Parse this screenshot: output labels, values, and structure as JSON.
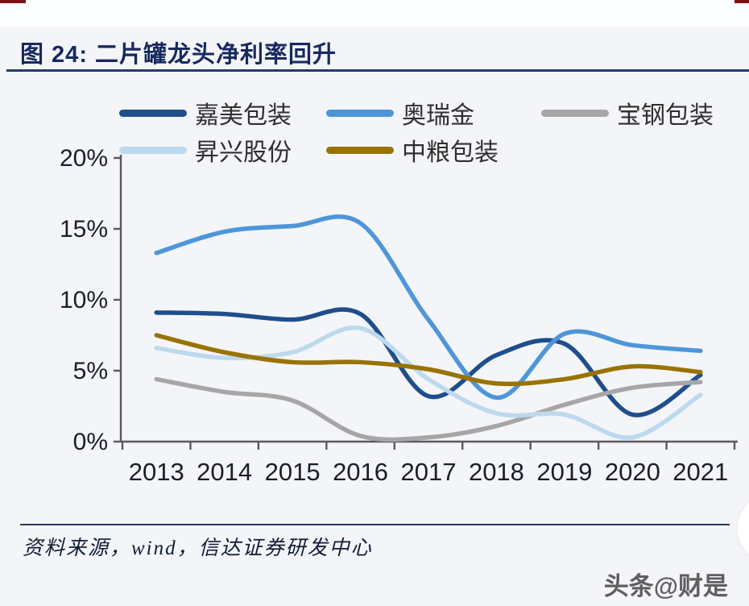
{
  "page": {
    "title": "图 24:  二片罐龙头净利率回升",
    "source": "资料来源，wind，信达证券研发中心",
    "watermark": "头条@财是"
  },
  "colors": {
    "title_navy": "#17295E",
    "axis_line": "#595959",
    "axis_text": "#1D1D28",
    "page_bg": "#F3F5F9",
    "top_strip": "#FCFDFE",
    "corner_dash_red": "#7E1416",
    "divider_navy": "#24395E"
  },
  "chart_data": {
    "type": "line",
    "title": "二片罐龙头净利率回升",
    "categories": [
      "2013",
      "2014",
      "2015",
      "2016",
      "2017",
      "2018",
      "2019",
      "2020",
      "2021"
    ],
    "series": [
      {
        "name": "嘉美包装",
        "color": "#1F4E8C",
        "values": [
          9.1,
          9.0,
          8.6,
          9.0,
          3.2,
          6.1,
          6.9,
          1.9,
          4.7
        ]
      },
      {
        "name": "奥瑞金",
        "color": "#4E96D9",
        "values": [
          13.3,
          14.8,
          15.2,
          15.4,
          8.6,
          3.1,
          7.6,
          6.8,
          6.4
        ]
      },
      {
        "name": "宝钢包装",
        "color": "#A6A6A6",
        "values": [
          4.4,
          3.5,
          2.9,
          0.4,
          0.3,
          1.1,
          2.6,
          3.8,
          4.2
        ]
      },
      {
        "name": "昇兴股份",
        "color": "#BDD9EE",
        "values": [
          6.6,
          5.9,
          6.3,
          8.0,
          4.4,
          2.0,
          1.9,
          0.3,
          3.3
        ]
      },
      {
        "name": "中粮包装",
        "color": "#997300",
        "values": [
          7.5,
          6.3,
          5.6,
          5.6,
          5.1,
          4.1,
          4.4,
          5.3,
          4.9
        ]
      }
    ],
    "xlabel": "",
    "ylabel": "",
    "ylim": [
      0,
      20
    ],
    "y_ticks": [
      "0%",
      "5%",
      "10%",
      "15%",
      "20%"
    ],
    "y_tick_values": [
      0,
      5,
      10,
      15,
      20
    ],
    "grid": false,
    "legend_position": "top",
    "line_smoothing": true
  }
}
